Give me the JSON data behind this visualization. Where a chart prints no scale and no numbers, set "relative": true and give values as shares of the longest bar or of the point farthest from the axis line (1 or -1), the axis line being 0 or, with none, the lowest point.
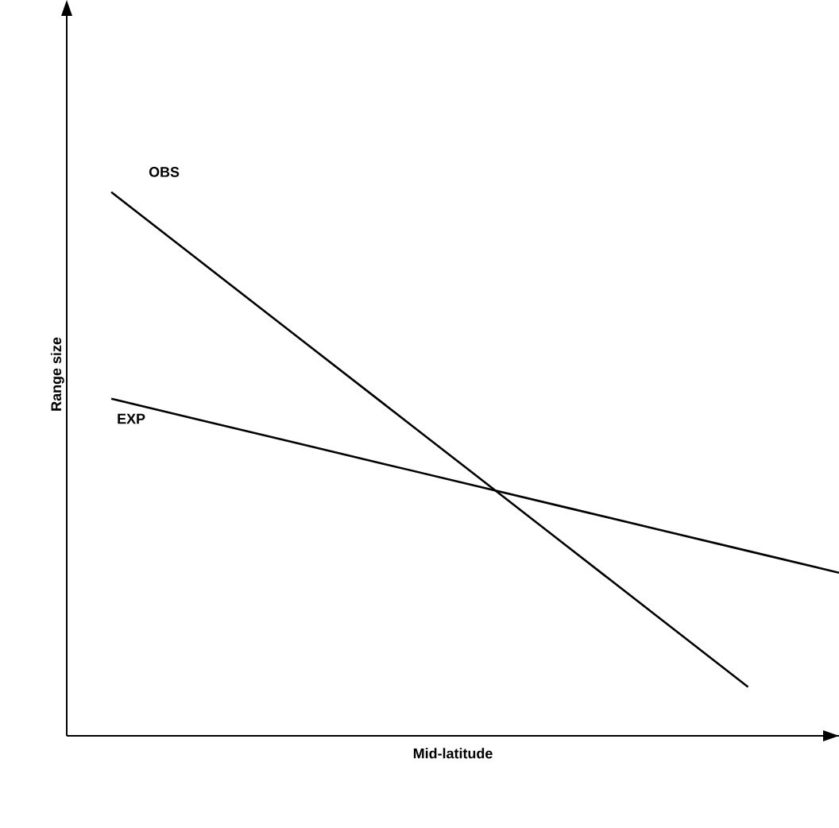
{
  "chart_data": {
    "type": "line",
    "relative": true,
    "xlabel": "Mid-latitude",
    "ylabel": "Range size",
    "categories": [
      null,
      null,
      null,
      null,
      null,
      null,
      null,
      null,
      null
    ],
    "series": [
      {
        "name": "OBS",
        "color": "#000000",
        "values": [
          1,
          0.87,
          0.74,
          0.61,
          0.48,
          0.35,
          0.22,
          0.09,
          null
        ]
      },
      {
        "name": "EXP",
        "color": "#000000",
        "values": [
          0.62,
          0.58,
          0.54,
          0.5,
          0.46,
          0.42,
          0.38,
          0.34,
          0.3
        ]
      }
    ]
  }
}
